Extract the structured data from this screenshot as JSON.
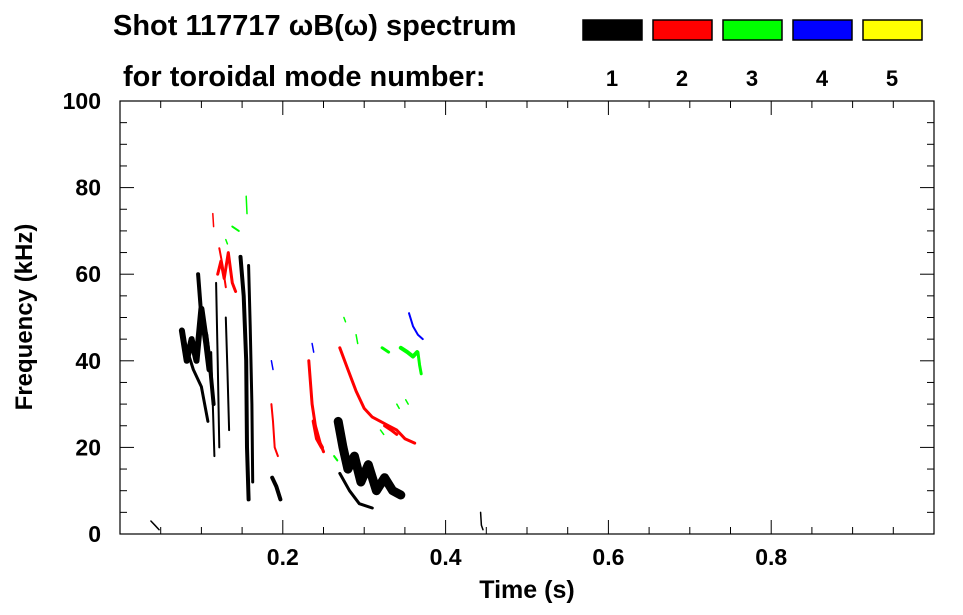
{
  "chart_data": {
    "type": "scatter",
    "title_line1": "Shot 117717 ωB(ω) spectrum",
    "title_line2": "for toroidal mode number:",
    "xlabel": "Time (s)",
    "ylabel": "Frequency (kHz)",
    "xlim": [
      0.0,
      1.0
    ],
    "ylim": [
      0,
      100
    ],
    "x_ticks": [
      0.2,
      0.4,
      0.6,
      0.8
    ],
    "x_tick_labels": [
      "0.2",
      "0.4",
      "0.6",
      "0.8"
    ],
    "y_ticks": [
      0,
      20,
      40,
      60,
      80,
      100
    ],
    "y_tick_labels": [
      "0",
      "20",
      "40",
      "60",
      "80",
      "100"
    ],
    "x_minor_step": 0.05,
    "y_minor_step": 5,
    "grid": false,
    "legend_position": "top-right",
    "series": [
      {
        "name": "1",
        "color": "#000000",
        "strokes": [
          {
            "pts": [
              [
                0.076,
                47
              ],
              [
                0.082,
                40
              ],
              [
                0.088,
                45
              ],
              [
                0.094,
                40
              ],
              [
                0.1,
                52
              ],
              [
                0.106,
                44
              ],
              [
                0.11,
                38
              ]
            ],
            "w": 6
          },
          {
            "pts": [
              [
                0.096,
                60
              ],
              [
                0.1,
                50
              ],
              [
                0.106,
                46
              ],
              [
                0.11,
                40
              ],
              [
                0.115,
                30
              ]
            ],
            "w": 4
          },
          {
            "pts": [
              [
                0.08,
                44
              ],
              [
                0.09,
                38
              ],
              [
                0.1,
                34
              ],
              [
                0.108,
                26
              ]
            ],
            "w": 3
          },
          {
            "pts": [
              [
                0.112,
                42
              ],
              [
                0.114,
                30
              ],
              [
                0.116,
                18
              ]
            ],
            "w": 2
          },
          {
            "pts": [
              [
                0.118,
                58
              ],
              [
                0.12,
                40
              ],
              [
                0.122,
                20
              ]
            ],
            "w": 2
          },
          {
            "pts": [
              [
                0.13,
                50
              ],
              [
                0.132,
                38
              ],
              [
                0.134,
                24
              ]
            ],
            "w": 2
          },
          {
            "pts": [
              [
                0.148,
                64
              ],
              [
                0.152,
                55
              ],
              [
                0.155,
                40
              ],
              [
                0.156,
                20
              ],
              [
                0.158,
                8
              ]
            ],
            "w": 4
          },
          {
            "pts": [
              [
                0.158,
                62
              ],
              [
                0.16,
                48
              ],
              [
                0.162,
                30
              ],
              [
                0.163,
                12
              ]
            ],
            "w": 3
          },
          {
            "pts": [
              [
                0.187,
                13
              ],
              [
                0.192,
                11
              ],
              [
                0.197,
                8
              ]
            ],
            "w": 4
          },
          {
            "pts": [
              [
                0.268,
                26
              ],
              [
                0.274,
                20
              ],
              [
                0.28,
                15
              ],
              [
                0.288,
                18
              ],
              [
                0.296,
                12
              ],
              [
                0.305,
                16
              ],
              [
                0.315,
                10
              ],
              [
                0.325,
                13
              ],
              [
                0.335,
                10
              ],
              [
                0.345,
                9
              ]
            ],
            "w": 9
          },
          {
            "pts": [
              [
                0.27,
                14
              ],
              [
                0.282,
                10
              ],
              [
                0.294,
                7
              ],
              [
                0.31,
                6
              ]
            ],
            "w": 3
          },
          {
            "pts": [
              [
                0.038,
                3
              ],
              [
                0.043,
                2
              ],
              [
                0.048,
                1
              ]
            ],
            "w": 1.5
          },
          {
            "pts": [
              [
                0.443,
                5
              ],
              [
                0.444,
                2
              ],
              [
                0.446,
                1
              ]
            ],
            "w": 1.5
          }
        ]
      },
      {
        "name": "2",
        "color": "#ff0000",
        "strokes": [
          {
            "pts": [
              [
                0.12,
                60
              ],
              [
                0.124,
                63
              ],
              [
                0.128,
                59
              ],
              [
                0.133,
                65
              ],
              [
                0.138,
                58
              ],
              [
                0.142,
                56
              ]
            ],
            "w": 3
          },
          {
            "pts": [
              [
                0.114,
                74
              ],
              [
                0.115,
                71
              ]
            ],
            "w": 1.5
          },
          {
            "pts": [
              [
                0.122,
                66
              ],
              [
                0.126,
                62
              ],
              [
                0.13,
                57
              ]
            ],
            "w": 2
          },
          {
            "pts": [
              [
                0.186,
                30
              ],
              [
                0.188,
                26
              ],
              [
                0.19,
                20
              ],
              [
                0.194,
                18
              ]
            ],
            "w": 2
          },
          {
            "pts": [
              [
                0.232,
                40
              ],
              [
                0.236,
                30
              ],
              [
                0.24,
                25
              ],
              [
                0.246,
                21
              ],
              [
                0.25,
                19
              ]
            ],
            "w": 3
          },
          {
            "pts": [
              [
                0.238,
                26
              ],
              [
                0.242,
                22
              ],
              [
                0.248,
                20
              ]
            ],
            "w": 4
          },
          {
            "pts": [
              [
                0.27,
                43
              ],
              [
                0.28,
                38
              ],
              [
                0.29,
                33
              ],
              [
                0.3,
                29
              ],
              [
                0.31,
                27
              ],
              [
                0.32,
                26
              ],
              [
                0.33,
                25
              ],
              [
                0.34,
                24
              ],
              [
                0.35,
                22
              ],
              [
                0.362,
                21
              ]
            ],
            "w": 3
          },
          {
            "pts": [
              [
                0.325,
                25
              ],
              [
                0.333,
                24
              ],
              [
                0.34,
                23
              ]
            ],
            "w": 3
          }
        ]
      },
      {
        "name": "3",
        "color": "#00ff00",
        "strokes": [
          {
            "pts": [
              [
                0.138,
                71
              ],
              [
                0.146,
                70
              ]
            ],
            "w": 2
          },
          {
            "pts": [
              [
                0.13,
                68
              ],
              [
                0.132,
                67
              ]
            ],
            "w": 1.5
          },
          {
            "pts": [
              [
                0.155,
                78
              ],
              [
                0.156,
                74
              ]
            ],
            "w": 1.5
          },
          {
            "pts": [
              [
                0.263,
                18
              ],
              [
                0.267,
                17
              ]
            ],
            "w": 2
          },
          {
            "pts": [
              [
                0.275,
                50
              ],
              [
                0.277,
                49
              ]
            ],
            "w": 1.5
          },
          {
            "pts": [
              [
                0.29,
                46
              ],
              [
                0.292,
                44
              ]
            ],
            "w": 1.5
          },
          {
            "pts": [
              [
                0.32,
                24
              ],
              [
                0.324,
                23
              ]
            ],
            "w": 1.5
          },
          {
            "pts": [
              [
                0.34,
                30
              ],
              [
                0.343,
                29
              ]
            ],
            "w": 1.5
          },
          {
            "pts": [
              [
                0.351,
                31
              ],
              [
                0.354,
                30
              ]
            ],
            "w": 1.5
          },
          {
            "pts": [
              [
                0.322,
                43
              ],
              [
                0.33,
                42
              ]
            ],
            "w": 3
          },
          {
            "pts": [
              [
                0.345,
                43
              ],
              [
                0.353,
                42
              ],
              [
                0.36,
                41
              ],
              [
                0.365,
                42
              ]
            ],
            "w": 4
          },
          {
            "pts": [
              [
                0.366,
                42
              ],
              [
                0.368,
                39
              ],
              [
                0.37,
                37
              ]
            ],
            "w": 3
          }
        ]
      },
      {
        "name": "4",
        "color": "#0000ff",
        "strokes": [
          {
            "pts": [
              [
                0.186,
                40
              ],
              [
                0.188,
                38
              ]
            ],
            "w": 1.5
          },
          {
            "pts": [
              [
                0.236,
                44
              ],
              [
                0.238,
                42
              ]
            ],
            "w": 1.5
          },
          {
            "pts": [
              [
                0.355,
                51
              ],
              [
                0.36,
                48
              ],
              [
                0.366,
                46
              ],
              [
                0.372,
                45
              ]
            ],
            "w": 2
          }
        ]
      },
      {
        "name": "5",
        "color": "#ffff00",
        "strokes": []
      }
    ]
  }
}
